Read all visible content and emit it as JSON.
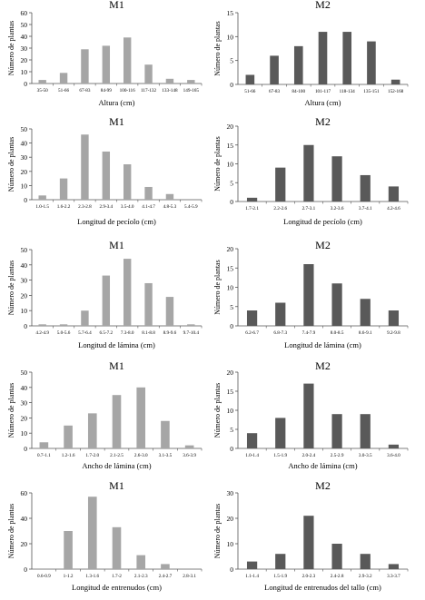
{
  "colors": {
    "M1": "#a6a6a6",
    "M2": "#595959",
    "axis": "#555555"
  },
  "chart_data": [
    {
      "type": "bar",
      "title": "M1",
      "ylabel": "Número de plantas",
      "xlabel": "Altura (cm)",
      "ylim": [
        0,
        60
      ],
      "yticks": [
        0,
        10,
        20,
        30,
        40,
        50,
        60
      ],
      "categories": [
        "35-50",
        "51-66",
        "67-83",
        "84-99",
        "100-116",
        "117-132",
        "133-148",
        "149-165"
      ],
      "values": [
        3,
        9,
        29,
        32,
        39,
        16,
        4,
        3
      ]
    },
    {
      "type": "bar",
      "title": "M2",
      "ylabel": "Número de plantas",
      "xlabel": "Altura (cm)",
      "ylim": [
        0,
        15
      ],
      "yticks": [
        0,
        5,
        10,
        15
      ],
      "categories": [
        "51-66",
        "67-83",
        "84-100",
        "101-117",
        "118-134",
        "135-151",
        "152-168"
      ],
      "values": [
        2,
        6,
        8,
        11,
        11,
        9,
        1
      ]
    },
    {
      "type": "bar",
      "title": "M1",
      "ylabel": "Número de plantas",
      "xlabel": "Longitud de pecíolo (cm)",
      "ylim": [
        0,
        50
      ],
      "yticks": [
        0,
        10,
        20,
        30,
        40,
        50
      ],
      "categories": [
        "1.0-1.5",
        "1.6-2.2",
        "2.3-2.8",
        "2.9-3.4",
        "3.5-4.0",
        "4.1-4.7",
        "4.8-5.3",
        "5.4-5.9"
      ],
      "values": [
        3,
        15,
        46,
        34,
        25,
        9,
        4,
        0
      ]
    },
    {
      "type": "bar",
      "title": "M2",
      "ylabel": "Número de plantas",
      "xlabel": "Longitud de pecíolo (cm)",
      "ylim": [
        0,
        20
      ],
      "yticks": [
        0,
        5,
        10,
        15,
        20
      ],
      "categories": [
        "1.7-2.1",
        "2.2-2.6",
        "2.7-3.1",
        "3.2-3.6",
        "3.7-4.1",
        "4.2-4.6"
      ],
      "values": [
        1,
        9,
        15,
        12,
        7,
        4
      ]
    },
    {
      "type": "bar",
      "title": "M1",
      "ylabel": "Número de plantas",
      "xlabel": "Longitud de lámina (cm)",
      "ylim": [
        0,
        50
      ],
      "yticks": [
        0,
        10,
        20,
        30,
        40,
        50
      ],
      "categories": [
        "4.2-4.9",
        "5.0-5.6",
        "5.7-6.4",
        "6.5-7.2",
        "7.3-8.0",
        "8.1-8.8",
        "8.9-9.6",
        "9.7-10.4"
      ],
      "values": [
        1,
        1,
        10,
        33,
        44,
        28,
        19,
        1
      ]
    },
    {
      "type": "bar",
      "title": "M2",
      "ylabel": "Número de plantas",
      "xlabel": "Longitud de lámina (cm)",
      "ylim": [
        0,
        20
      ],
      "yticks": [
        0,
        5,
        10,
        15,
        20
      ],
      "categories": [
        "6.2-6.7",
        "6.8-7.3",
        "7.4-7.9",
        "8.0-8.5",
        "8.6-9.1",
        "9.2-9.8"
      ],
      "values": [
        4,
        6,
        16,
        11,
        7,
        4
      ]
    },
    {
      "type": "bar",
      "title": "M1",
      "ylabel": "Número de plantas",
      "xlabel": "Ancho de lámina (cm)",
      "ylim": [
        0,
        50
      ],
      "yticks": [
        0,
        10,
        20,
        30,
        40,
        50
      ],
      "categories": [
        "0.7-1.1",
        "1.2-1.6",
        "1.7-2.0",
        "2.1-2.5",
        "2.6-3.0",
        "3.1-3.5",
        "3.6-3.9"
      ],
      "values": [
        4,
        15,
        23,
        35,
        40,
        18,
        2
      ]
    },
    {
      "type": "bar",
      "title": "M2",
      "ylabel": "Número de plantas",
      "xlabel": "Ancho de lámina (cm)",
      "ylim": [
        0,
        20
      ],
      "yticks": [
        0,
        5,
        10,
        15,
        20
      ],
      "categories": [
        "1.0-1.4",
        "1.5-1.9",
        "2.0-2.4",
        "2.5-2.9",
        "3.0-3.5",
        "3.6-4.0"
      ],
      "values": [
        4,
        8,
        17,
        9,
        9,
        1
      ]
    },
    {
      "type": "bar",
      "title": "M1",
      "ylabel": "Número de plantas",
      "xlabel": "Longitud de entrenudos (cm)",
      "ylim": [
        0,
        60
      ],
      "yticks": [
        0,
        20,
        40,
        60
      ],
      "categories": [
        "0.6-0.9",
        "1-1.2",
        "1.3-1.6",
        "1.7-2",
        "2.1-2.3",
        "2.4-2.7",
        "2.8-3.1"
      ],
      "values": [
        0,
        30,
        57,
        33,
        11,
        4,
        0
      ]
    },
    {
      "type": "bar",
      "title": "M2",
      "ylabel": "Número de plantas",
      "xlabel": "Longitud de entrenudos del tallo (cm)",
      "ylim": [
        0,
        30
      ],
      "yticks": [
        0,
        10,
        20,
        30
      ],
      "categories": [
        "1.1-1.4",
        "1.5-1.9",
        "2.0-2.3",
        "2.4-2.8",
        "2.9-3.2",
        "3.3-3.7"
      ],
      "values": [
        3,
        6,
        21,
        10,
        6,
        2
      ]
    }
  ]
}
